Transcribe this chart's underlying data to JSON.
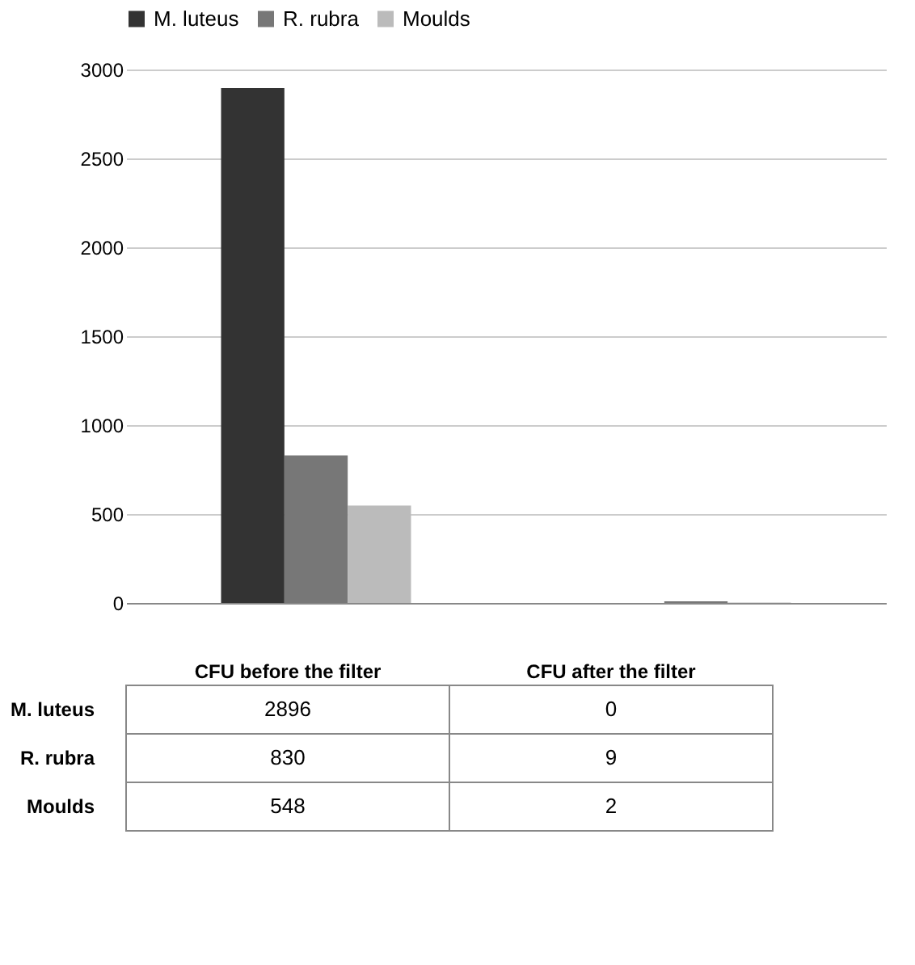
{
  "chart_data": {
    "type": "bar",
    "categories": [
      "CFU before the filter",
      "CFU after the filter"
    ],
    "series": [
      {
        "name": "M. luteus",
        "color": "#333333",
        "values": [
          2896,
          0
        ]
      },
      {
        "name": "R. rubra",
        "color": "#777777",
        "values": [
          830,
          9
        ]
      },
      {
        "name": "Moulds",
        "color": "#bbbbbb",
        "values": [
          548,
          2
        ]
      }
    ],
    "ylim": [
      0,
      3000
    ],
    "yticks": [
      0,
      500,
      1000,
      1500,
      2000,
      2500,
      3000
    ],
    "grid": "y",
    "legend": "top",
    "tick_labels": "y",
    "data_labels": true
  }
}
